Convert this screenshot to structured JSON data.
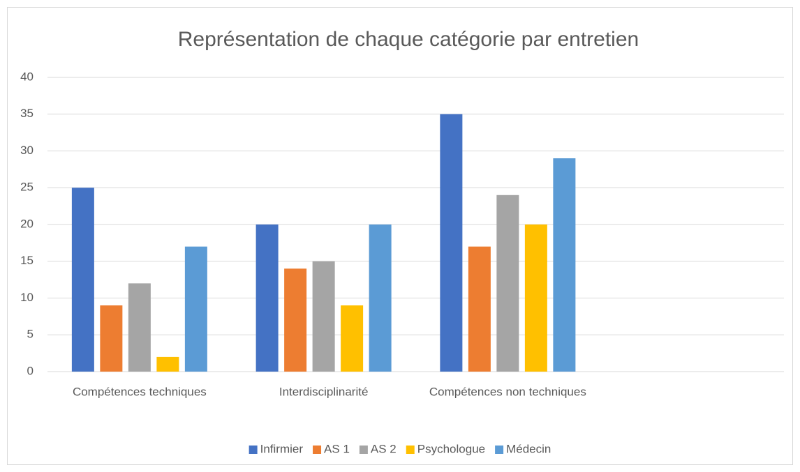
{
  "chart_data": {
    "type": "bar",
    "title": "Représentation de chaque catégorie par entretien",
    "categories": [
      "Compétences techniques",
      "Interdisciplinarité",
      "Compétences non techniques",
      null
    ],
    "series": [
      {
        "name": "Infirmier",
        "color": "#4472c4",
        "values": [
          25,
          20,
          35,
          null
        ]
      },
      {
        "name": "AS 1",
        "color": "#ed7d31",
        "values": [
          9,
          14,
          17,
          null
        ]
      },
      {
        "name": "AS 2",
        "color": "#a5a5a5",
        "values": [
          12,
          15,
          24,
          null
        ]
      },
      {
        "name": "Psychologue",
        "color": "#ffc000",
        "values": [
          2,
          9,
          20,
          null
        ]
      },
      {
        "name": "Médecin",
        "color": "#5b9bd5",
        "values": [
          17,
          20,
          29,
          null
        ]
      }
    ],
    "ylim": [
      0,
      40
    ],
    "yticks": [
      0,
      5,
      10,
      15,
      20,
      25,
      30,
      35,
      40
    ],
    "grid": true,
    "legend": "bottom"
  }
}
